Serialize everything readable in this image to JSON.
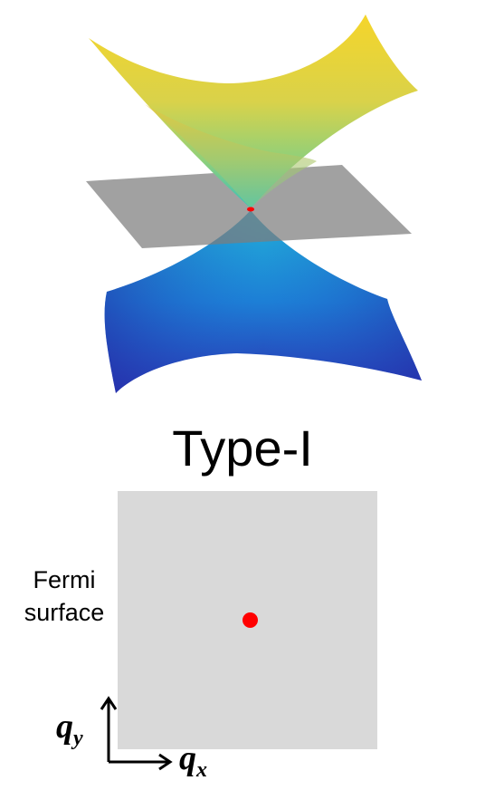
{
  "title": "Type-I",
  "fermi_label": [
    "Fermi",
    "surface"
  ],
  "axis_x": {
    "base": "q",
    "sub": "x"
  },
  "axis_y": {
    "base": "q",
    "sub": "y"
  },
  "colors": {
    "upper_band_top": "#f5d52a",
    "upper_band_mid": "#8fd07a",
    "upper_band_tip": "#3cc0b8",
    "lower_band_top": "#1fa6d8",
    "lower_band_bottom": "#2a2fb0",
    "plane": "#7d7d7d",
    "fermi_box": "#d9d9d9",
    "weyl_point": "#ff0000"
  }
}
